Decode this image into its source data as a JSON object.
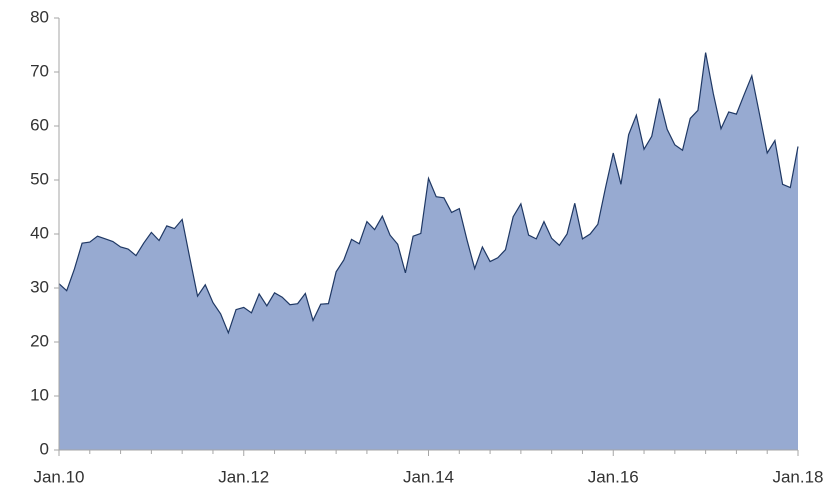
{
  "chart_data": {
    "type": "area",
    "categories": [
      "Jan.10",
      null,
      null,
      null,
      null,
      null,
      null,
      null,
      null,
      null,
      null,
      null,
      null,
      null,
      null,
      null,
      null,
      null,
      null,
      null,
      null,
      null,
      null,
      null,
      "Jan.12",
      null,
      null,
      null,
      null,
      null,
      null,
      null,
      null,
      null,
      null,
      null,
      null,
      null,
      null,
      null,
      null,
      null,
      null,
      null,
      null,
      null,
      null,
      null,
      "Jan.14",
      null,
      null,
      null,
      null,
      null,
      null,
      null,
      null,
      null,
      null,
      null,
      null,
      null,
      null,
      null,
      null,
      null,
      null,
      null,
      null,
      null,
      null,
      null,
      "Jan.16",
      null,
      null,
      null,
      null,
      null,
      null,
      null,
      null,
      null,
      null,
      null,
      null,
      null,
      null,
      null,
      null,
      null,
      null,
      null,
      null,
      null,
      null,
      null,
      "Jan.18"
    ],
    "values": [
      30.8,
      29.5,
      33.5,
      38.3,
      38.5,
      39.6,
      39.1,
      38.6,
      37.6,
      37.2,
      36.0,
      38.3,
      40.3,
      38.8,
      41.5,
      41.0,
      42.7,
      35.5,
      28.5,
      30.6,
      27.3,
      25.2,
      21.7,
      26.0,
      26.4,
      25.4,
      28.9,
      26.7,
      29.1,
      28.3,
      26.9,
      27.1,
      29.0,
      24.0,
      27.0,
      27.1,
      33.0,
      35.2,
      39.0,
      38.2,
      42.3,
      40.8,
      43.3,
      39.8,
      38.1,
      32.8,
      39.6,
      40.1,
      50.3,
      46.9,
      46.7,
      44.0,
      44.7,
      38.9,
      33.6,
      37.6,
      34.9,
      35.6,
      37.1,
      43.2,
      45.6,
      39.8,
      39.1,
      42.3,
      39.2,
      37.9,
      40.0,
      45.7,
      39.1,
      40.0,
      41.8,
      48.6,
      55.0,
      49.2,
      58.4,
      62.0,
      55.7,
      58.1,
      65.1,
      59.4,
      56.5,
      55.5,
      61.4,
      62.9,
      73.6,
      66.0,
      59.5,
      62.6,
      62.2,
      65.8,
      69.3,
      62.2,
      55.0,
      57.3,
      49.2,
      48.6,
      56.2
    ],
    "color": "#97aad1",
    "line_color": "#1f3864",
    "ylim": [
      0,
      80
    ],
    "yticks": [
      0,
      10,
      20,
      30,
      40,
      50,
      60,
      70,
      80
    ]
  }
}
